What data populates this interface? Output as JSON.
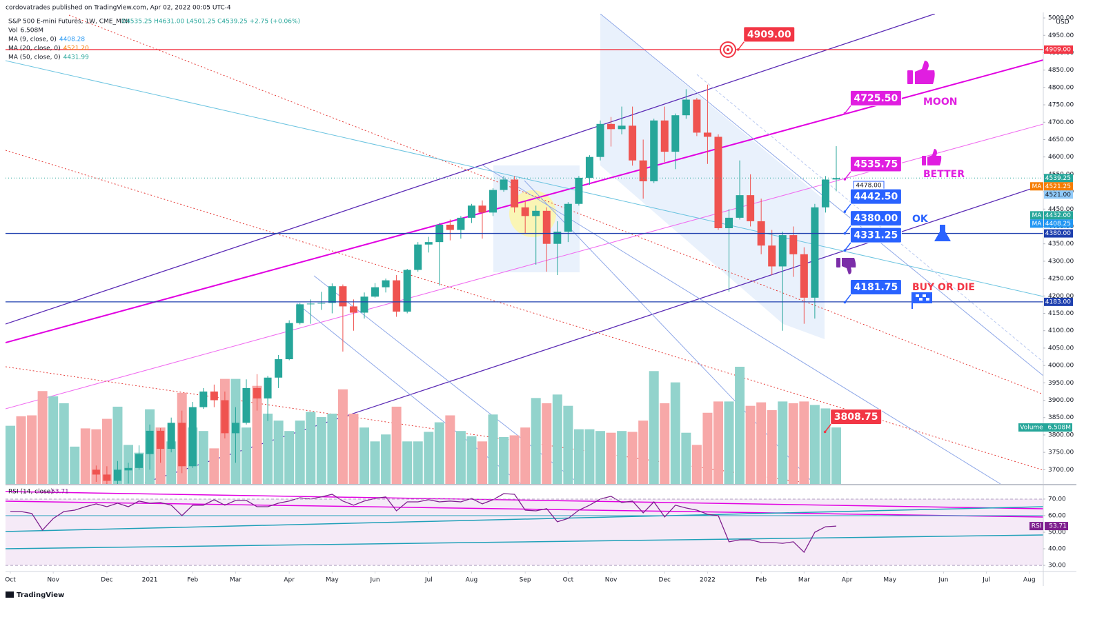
{
  "header": "cordovatrades published on TradingView.com, Apr 02, 2022 00:05 UTC-4",
  "footer": "TradingView",
  "chart_data": [
    {
      "type": "candlestick",
      "title": "S&P 500 E-mini Futures, 1W, CME_MINI",
      "ohlc_text": "O4535.25 H4631.00 L4501.25 C4539.25 +2.75 (+0.06%)",
      "up_color": "#26a69a",
      "down_color": "#ef5350",
      "y_unit": "USD",
      "hover_label": "4478.00",
      "x": [
        8,
        9,
        10,
        11,
        12,
        13,
        14,
        15,
        16,
        17,
        18,
        19,
        20,
        21,
        22,
        23,
        24,
        25,
        26,
        27,
        28,
        29,
        30,
        31,
        32,
        33,
        34,
        35,
        36,
        37,
        38,
        39,
        40,
        41,
        42,
        43,
        44,
        45,
        46,
        47,
        48,
        49,
        50,
        51,
        52,
        53,
        54,
        55,
        56,
        57,
        58,
        59,
        60,
        61,
        62,
        63,
        64,
        65,
        66,
        67,
        68,
        69,
        70,
        71,
        72,
        73,
        74,
        75,
        76,
        77
      ],
      "open": [
        3700,
        3686,
        3668,
        3698,
        3705,
        3745,
        3812,
        3760,
        3835,
        3710,
        3880,
        3925,
        3900,
        3805,
        3835,
        3935,
        3905,
        3965,
        4018,
        4122,
        4176,
        4178,
        4180,
        4228,
        4170,
        4152,
        4198,
        4225,
        4245,
        4155,
        4275,
        4348,
        4355,
        4405,
        4390,
        4425,
        4460,
        4440,
        4505,
        4535,
        4455,
        4430,
        4445,
        4350,
        4385,
        4465,
        4540,
        4600,
        4695,
        4680,
        4690,
        4590,
        4530,
        4705,
        4615,
        4720,
        4765,
        4670,
        4658,
        4395,
        4425,
        4490,
        4415,
        4345,
        4285,
        4375,
        4320,
        4195,
        4455,
        4535.25
      ],
      "high": [
        3712,
        3710,
        3725,
        3720,
        3770,
        3830,
        3820,
        3850,
        3870,
        3895,
        3935,
        3945,
        3925,
        3880,
        3960,
        3975,
        3970,
        4030,
        4130,
        4180,
        4190,
        4212,
        4236,
        4233,
        4190,
        4210,
        4237,
        4250,
        4260,
        4278,
        4355,
        4370,
        4410,
        4420,
        4430,
        4465,
        4475,
        4510,
        4545,
        4545,
        4475,
        4460,
        4455,
        4415,
        4470,
        4545,
        4605,
        4705,
        4715,
        4745,
        4745,
        4650,
        4710,
        4745,
        4725,
        4795,
        4770,
        4808,
        4665,
        4450,
        4590,
        4550,
        4480,
        4390,
        4385,
        4400,
        4340,
        4465,
        4545,
        4631
      ],
      "low": [
        3665,
        3650,
        3640,
        3660,
        3700,
        3700,
        3720,
        3750,
        3690,
        3705,
        3875,
        3880,
        3790,
        3720,
        3830,
        3870,
        3840,
        3935,
        4015,
        4118,
        4120,
        4160,
        4150,
        4040,
        4100,
        4135,
        4195,
        4210,
        4140,
        4150,
        4270,
        4325,
        4230,
        4360,
        4365,
        4410,
        4365,
        4430,
        4500,
        4440,
        4380,
        4290,
        4270,
        4260,
        4355,
        4460,
        4520,
        4590,
        4630,
        4665,
        4575,
        4480,
        4525,
        4585,
        4565,
        4710,
        4660,
        4580,
        4390,
        4212,
        4420,
        4400,
        4320,
        4260,
        4100,
        4255,
        4120,
        4135,
        4440,
        4501.25
      ],
      "close": [
        3686,
        3668,
        3700,
        3705,
        3745,
        3812,
        3760,
        3835,
        3710,
        3880,
        3925,
        3900,
        3805,
        3835,
        3935,
        3905,
        3965,
        4018,
        4122,
        4176,
        4178,
        4180,
        4228,
        4170,
        4152,
        4198,
        4225,
        4245,
        4155,
        4275,
        4348,
        4355,
        4405,
        4390,
        4425,
        4460,
        4440,
        4505,
        4535,
        4455,
        4430,
        4445,
        4350,
        4385,
        4465,
        4540,
        4600,
        4695,
        4680,
        4690,
        4590,
        4530,
        4705,
        4615,
        4720,
        4765,
        4670,
        4658,
        4395,
        4425,
        4490,
        4415,
        4345,
        4285,
        4375,
        4320,
        4195,
        4455,
        4535,
        4539.25
      ],
      "xlim": [
        -0.45,
        96.3
      ],
      "xticks": [
        {
          "value": 0,
          "label": "Oct"
        },
        {
          "value": 4,
          "label": "Nov"
        },
        {
          "value": 9,
          "label": "Dec"
        },
        {
          "value": 13,
          "label": "2021"
        },
        {
          "value": 17,
          "label": "Feb"
        },
        {
          "value": 21,
          "label": "Mar"
        },
        {
          "value": 26,
          "label": "Apr"
        },
        {
          "value": 30,
          "label": "May"
        },
        {
          "value": 34,
          "label": "Jun"
        },
        {
          "value": 39,
          "label": "Jul"
        },
        {
          "value": 43,
          "label": "Aug"
        },
        {
          "value": 48,
          "label": "Sep"
        },
        {
          "value": 52,
          "label": "Oct"
        },
        {
          "value": 56,
          "label": "Nov"
        },
        {
          "value": 61,
          "label": "Dec"
        },
        {
          "value": 65,
          "label": "2022"
        },
        {
          "value": 70,
          "label": "Feb"
        },
        {
          "value": 74,
          "label": "Mar"
        },
        {
          "value": 78,
          "label": "Apr"
        },
        {
          "value": 82,
          "label": "May"
        },
        {
          "value": 87,
          "label": "Jun"
        },
        {
          "value": 91,
          "label": "Jul"
        },
        {
          "value": 95,
          "label": "Aug"
        }
      ],
      "ylim": [
        3659,
        5012
      ],
      "yticks": [
        {
          "value": 3700,
          "label": "3700.00"
        },
        {
          "value": 3750,
          "label": "3750.00"
        },
        {
          "value": 3800,
          "label": "3800.00"
        },
        {
          "value": 3850,
          "label": "3850.00"
        },
        {
          "value": 3900,
          "label": "3900.00"
        },
        {
          "value": 3950,
          "label": "3950.00"
        },
        {
          "value": 4000,
          "label": "4000.00"
        },
        {
          "value": 4050,
          "label": "4050.00"
        },
        {
          "value": 4100,
          "label": "4100.00"
        },
        {
          "value": 4150,
          "label": "4150.00"
        },
        {
          "value": 4200,
          "label": "4200.00"
        },
        {
          "value": 4250,
          "label": "4250.00"
        },
        {
          "value": 4300,
          "label": "4300.00"
        },
        {
          "value": 4350,
          "label": "4350.00"
        },
        {
          "value": 4400,
          "label": "4400.00"
        },
        {
          "value": 4450,
          "label": "4450.00"
        },
        {
          "value": 4500,
          "label": "4500.00"
        },
        {
          "value": 4550,
          "label": "4550.00"
        },
        {
          "value": 4600,
          "label": "4600.00"
        },
        {
          "value": 4650,
          "label": "4650.00"
        },
        {
          "value": 4700,
          "label": "4700.00"
        },
        {
          "value": 4750,
          "label": "4750.00"
        },
        {
          "value": 4800,
          "label": "4800.00"
        },
        {
          "value": 4850,
          "label": "4850.00"
        },
        {
          "value": 4900,
          "label": "4900.00"
        },
        {
          "value": 4950,
          "label": "4950.00"
        },
        {
          "value": 5000,
          "label": "5000.00"
        }
      ],
      "indicators": [
        {
          "name": "Vol",
          "value": "6.508M",
          "color": "#131722"
        },
        {
          "name": "MA (9, close, 0)",
          "value": "4408.28",
          "color": "#2196f3"
        },
        {
          "name": "MA (20, close, 0)",
          "value": "4521.20",
          "color": "#f57c00"
        },
        {
          "name": "MA (50, close, 0)",
          "value": "4431.99",
          "color": "#26a69a"
        }
      ],
      "price_labels": [
        {
          "value": 4909,
          "label": "4909.00",
          "color": "#f23645",
          "line": "solid"
        },
        {
          "value": 4539.25,
          "label": "4539.25",
          "color": "#26a69a",
          "line": "dotted"
        },
        {
          "value": 4521.25,
          "label": "4521.25",
          "color": "#f57c00",
          "tag": "MA"
        },
        {
          "value": 4521,
          "label": "4521.00",
          "color": "#90caf9"
        },
        {
          "value": 4432,
          "label": "4432.00",
          "color": "#26a69a",
          "tag": "MA"
        },
        {
          "value": 4408.25,
          "label": "4408.25",
          "color": "#2196f3",
          "tag": "MA"
        },
        {
          "value": 4380,
          "label": "4380.00",
          "color": "#1e3fae",
          "line": "solid"
        },
        {
          "value": 4183,
          "label": "4183.00",
          "color": "#1e3fae",
          "line": "solid"
        }
      ],
      "annotations": [
        {
          "value": 4909,
          "label": "4909.00",
          "color": "#f23645",
          "x": 67.85
        },
        {
          "value": 4725.5,
          "label": "4725.50",
          "color": "#e01ee0",
          "x": 77.8
        },
        {
          "value": 4535.75,
          "label": "4535.75",
          "color": "#e01ee0",
          "x": 77.8
        },
        {
          "value": 4442.5,
          "label": "4442.50",
          "color": "#2962ff",
          "x": 77.8
        },
        {
          "value": 4380,
          "label": "4380.00",
          "color": "#2962ff",
          "x": 77.8
        },
        {
          "value": 4331.25,
          "label": "4331.25",
          "color": "#2962ff",
          "x": 77.8
        },
        {
          "value": 4181.75,
          "label": "4181.75",
          "color": "#2962ff",
          "x": 77.8
        },
        {
          "value": 3808.75,
          "label": "3808.75",
          "color": "#f23645",
          "x": 75.95
        }
      ],
      "notes": [
        {
          "text": "MOON",
          "color": "#e01ee0"
        },
        {
          "text": "BETTER",
          "color": "#e01ee0"
        },
        {
          "text": "OK",
          "color": "#2962ff"
        },
        {
          "text": "BUY OR DIE",
          "color": "#f23645"
        }
      ]
    },
    {
      "type": "bar",
      "name": "Volume",
      "value_label": "6.508M",
      "x": [
        0,
        1,
        2,
        3,
        4,
        5,
        6,
        7,
        8,
        9,
        10,
        11,
        12,
        13,
        14,
        15,
        16,
        17,
        18,
        19,
        20,
        21,
        22,
        23,
        24,
        25,
        26,
        27,
        28,
        29,
        30,
        31,
        32,
        33,
        34,
        35,
        36,
        37,
        38,
        39,
        40,
        41,
        42,
        43,
        44,
        45,
        46,
        47,
        48,
        49,
        50,
        51,
        52,
        53,
        54,
        55,
        56,
        57,
        58,
        59,
        60,
        61,
        62,
        63,
        64,
        65,
        66,
        67,
        68,
        69,
        70,
        71,
        72,
        73,
        74,
        75,
        76,
        77
      ],
      "values": [
        6.7,
        7.8,
        7.9,
        10.7,
        10.1,
        9.3,
        4.3,
        6.4,
        6.3,
        7.5,
        8.9,
        4.5,
        3.6,
        8.6,
        6.5,
        4.9,
        10.5,
        6.5,
        6.1,
        4.1,
        12.1,
        12.1,
        6.5,
        11.3,
        8.1,
        7.3,
        6.1,
        7.3,
        8.3,
        7.7,
        8.1,
        10.9,
        8.1,
        6.5,
        4.9,
        5.7,
        8.9,
        4.9,
        4.9,
        6.0,
        7.1,
        7.9,
        6.1,
        5.5,
        4.9,
        8.0,
        5.4,
        5.6,
        6.5,
        9.9,
        9.3,
        10.3,
        9.0,
        6.3,
        6.3,
        6.1,
        5.9,
        6.1,
        6.0,
        7.3,
        13.0,
        9.3,
        11.7,
        5.9,
        4.5,
        8.2,
        9.5,
        9.5,
        13.5,
        9.0,
        9.4,
        8.5,
        9.5,
        9.3,
        9.5,
        9.1,
        8.7,
        6.508
      ],
      "colors": [
        "#92d3cc",
        "#f7a8a8",
        "#f7a8a8",
        "#f7a8a8",
        "#92d3cc",
        "#92d3cc",
        "#92d3cc",
        "#f7a8a8",
        "#f7a8a8",
        "#f7a8a8",
        "#92d3cc",
        "#92d3cc",
        "#92d3cc",
        "#92d3cc",
        "#f7a8a8",
        "#92d3cc",
        "#f7a8a8",
        "#92d3cc",
        "#92d3cc",
        "#f7a8a8",
        "#f7a8a8",
        "#92d3cc",
        "#92d3cc",
        "#f7a8a8",
        "#92d3cc",
        "#92d3cc",
        "#92d3cc",
        "#92d3cc",
        "#92d3cc",
        "#92d3cc",
        "#92d3cc",
        "#f7a8a8",
        "#f7a8a8",
        "#92d3cc",
        "#92d3cc",
        "#92d3cc",
        "#f7a8a8",
        "#92d3cc",
        "#92d3cc",
        "#92d3cc",
        "#92d3cc",
        "#f7a8a8",
        "#92d3cc",
        "#92d3cc",
        "#f7a8a8",
        "#92d3cc",
        "#92d3cc",
        "#f7a8a8",
        "#f7a8a8",
        "#92d3cc",
        "#f7a8a8",
        "#92d3cc",
        "#92d3cc",
        "#92d3cc",
        "#92d3cc",
        "#92d3cc",
        "#f7a8a8",
        "#92d3cc",
        "#f7a8a8",
        "#f7a8a8",
        "#92d3cc",
        "#f7a8a8",
        "#92d3cc",
        "#92d3cc",
        "#f7a8a8",
        "#f7a8a8",
        "#f7a8a8",
        "#92d3cc",
        "#92d3cc",
        "#f7a8a8",
        "#f7a8a8",
        "#f7a8a8",
        "#92d3cc",
        "#f7a8a8",
        "#f7a8a8",
        "#92d3cc",
        "#92d3cc",
        "#92d3cc"
      ]
    },
    {
      "type": "line",
      "title": "RSI (14, close)",
      "tag": "RSI",
      "value_label": "53.71",
      "color": "#7e1f8e",
      "x": [
        0,
        1,
        2,
        3,
        4,
        5,
        6,
        7,
        8,
        9,
        10,
        11,
        12,
        13,
        14,
        15,
        16,
        17,
        18,
        19,
        20,
        21,
        22,
        23,
        24,
        25,
        26,
        27,
        28,
        29,
        30,
        31,
        32,
        33,
        34,
        35,
        36,
        37,
        38,
        39,
        40,
        41,
        42,
        43,
        44,
        45,
        46,
        47,
        48,
        49,
        50,
        51,
        52,
        53,
        54,
        55,
        56,
        57,
        58,
        59,
        60,
        61,
        62,
        63,
        64,
        65,
        66,
        67,
        68,
        69,
        70,
        71,
        72,
        73,
        74,
        75,
        76,
        77
      ],
      "values": [
        62.5,
        62.5,
        61.3,
        51.3,
        58.3,
        62.5,
        63.3,
        65.4,
        67.1,
        65.4,
        67.5,
        65.4,
        68.8,
        67.5,
        67.9,
        66.3,
        60,
        66.3,
        66.3,
        69.6,
        66.3,
        69.2,
        69.2,
        65.4,
        65.4,
        67.5,
        68.8,
        70.8,
        70,
        71.3,
        72.9,
        68.8,
        66.3,
        68.8,
        70.4,
        71.3,
        62.9,
        68.3,
        68.3,
        69.6,
        68.3,
        68.8,
        68.3,
        70.4,
        67.1,
        69.6,
        73.3,
        72.9,
        63.3,
        62.9,
        64.2,
        56.3,
        58.3,
        63.3,
        66.3,
        70,
        71.7,
        67.9,
        68.8,
        61.7,
        68.3,
        59.2,
        66.3,
        64.6,
        63.3,
        60.8,
        60,
        44.2,
        45.4,
        45.4,
        43.8,
        43.8,
        43.3,
        44.2,
        37.9,
        50,
        53.3,
        53.71
      ],
      "ylim": [
        26.7,
        75.8
      ],
      "band": [
        30,
        70
      ],
      "yticks": [
        {
          "value": 30,
          "label": "30.00"
        },
        {
          "value": 40,
          "label": "40.00"
        },
        {
          "value": 50,
          "label": "50.00"
        },
        {
          "value": 60,
          "label": "60.00"
        },
        {
          "value": 70,
          "label": "70.00"
        }
      ]
    }
  ]
}
